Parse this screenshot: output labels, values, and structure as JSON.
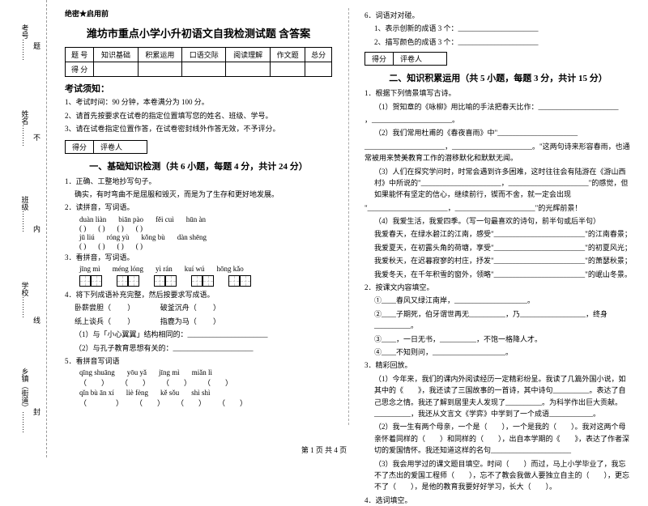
{
  "side": {
    "labels": [
      "乡镇（街道）",
      "学校",
      "班级",
      "姓名",
      "考号"
    ],
    "dots": "………",
    "markers": [
      "封",
      "线",
      "内",
      "不",
      "题"
    ]
  },
  "secret": "绝密★启用前",
  "title": "潍坊市重点小学小升初语文自我检测试题 含答案",
  "score_header": [
    "题  号",
    "知识基础",
    "积累运用",
    "口语交际",
    "阅读理解",
    "作文题",
    "总分"
  ],
  "score_row": "得  分",
  "notice_title": "考试须知：",
  "notices": [
    "1、考试时间：90 分钟，本卷满分为 100 分。",
    "2、请首先按要求在试卷的指定位置填写您的姓名、班级、学号。",
    "3、请在试卷指定位置作答，在试卷密封线外作答无效，不予评分。"
  ],
  "mini_score": {
    "a": "得分",
    "b": "评卷人"
  },
  "section1": "一、基础知识检测（共 6 小题，每题 4 分，共计 24 分）",
  "q1": {
    "stem": "1．正确、工整地抄写句子。",
    "content": "确实，有时弯曲不是屈服和毁灭，而是为了生存和更好地发展。"
  },
  "q2": {
    "stem": "2．读拼音，写词语。",
    "r1": [
      "duàn  liàn",
      "biān pào",
      "fěi cuì",
      "hūn àn"
    ],
    "r2": [
      "(         )",
      "(         )",
      "(         )",
      "(         )"
    ],
    "r3": [
      "jū liú",
      "róng yù",
      "kǒng bù",
      "dàn shēng"
    ],
    "r4": [
      "(         )",
      "(         )",
      "(         )",
      "(         )"
    ]
  },
  "q3": {
    "stem": "3．看拼音，写词语。",
    "pinyin": [
      "jīng  mì",
      "méng  lóng",
      "yì  rán",
      "kuí  wú",
      "hōng  kǎo"
    ]
  },
  "q4": {
    "stem": "4．将下列成语补充完整，然后按要求写成语。",
    "lines": [
      "卧薪尝胆（　 　）　　　　破釜沉舟（　 　）",
      "纸上谈兵（　 　）　　　　指鹿为马（　 　）"
    ],
    "subs": [
      "（1）与「小心翼翼」结构相同的：______________________",
      "（2）与孔子教育思想有关的：______________________"
    ]
  },
  "q5": {
    "stem": "5．看拼音写词语",
    "r1": [
      "qīng shuāng",
      "yōu yǎ",
      "jīng mì",
      "miǎn lì"
    ],
    "r2": [
      "（　　）",
      "（　　）",
      "（　　）",
      "（　　）"
    ],
    "r3": [
      "qǐn bù ān xí",
      "liè fèng",
      "kě sǒu",
      "shì shì"
    ],
    "r4": [
      "（　　　　）",
      "（　　）",
      "（　　）",
      "（　　）"
    ]
  },
  "right": {
    "q6": {
      "stem": "6．词语对对碰。",
      "lines": [
        "1、表示创新的成语 3 个：______________________",
        "2、描写颜色的成语 3 个：______________________"
      ]
    },
    "section2": "二、知识积累运用（共 5 小题，每题 3 分，共计 15 分）",
    "q1": {
      "stem": "1．根据下列情景填写古诗。",
      "lines": [
        "（1）贺知章的《咏柳》用比喻的手法把春天比作：______________________",
        "，______________________。",
        "（2）我们常用杜甫的《春夜喜雨》中\"______________________",
        "______________________，______________________。\"这两句诗来形容春雨，也通常被用来赞美教育工作的潜移默化和默默无闻。",
        "（3）人们在探究学问时，时常会遇到许多困难，这时往往会有陆游在《游山西村》中所说的\"______________________，______________________\"的感觉，但如果能怀有坚定的信心，继续前行，锲而不舍，就一定会出现",
        "\"______________________，______________________\"的光辉前景！",
        "（4）我爱生活，我爱四季。（写一句最喜欢的诗句，前半句或后半句）",
        "我爱春天，在绿水碧江的江南，感受\"_________________________\"的江南春景；",
        "我爱夏天，在初露头角的荷塘，享受\"_________________________\"的初夏风光；",
        "我爱秋天，在迟暮寂寥的村庄，抒发\"_________________________\"的萧瑟秋景；",
        "我爱冬天，在千年积雪的窗外，领略\"_________________________\"的岷山冬景。"
      ]
    },
    "q2": {
      "stem": "2．按课文内容填空。",
      "lines": [
        "①____春风又绿江南岸，____________________。",
        "②____子期死，伯牙谓世再无__________，乃__________________，终身__________。",
        "③____，一日无书，__________，不饱一格降人才。",
        "④____不知则问，____________________。"
      ]
    },
    "q3": {
      "stem": "3．精彩回放。",
      "lines": [
        "（1）今年来，我们的课内外阅读经历一定精彩纷呈。我读了几篇外国小说，如其中的《　　》，我还读了三国故事的一首诗，其中诗句__________。表达了自己思念之情。我还了解到居里夫人发现了__________。为科学作出巨大贡献。__________，我还从文言文《学弈》中学到了一个成语____________。",
        "（2）我一生有两个母亲，一个是（　　），一个是我的（　　）。我对这两个母亲怀着同样的（　　）和同样的（　　），出自本学期的《　　》，表达了作者深切的爱国情怀。我还知道这样的名句______________________",
        "（3）我会用学过的课文题目填空。时间（　　）而过，马上小学毕业了，我忘不了杰出的爱国工程师（　　），忘不了教会我做人要独立自主的（　　），更忘不了（　　），是他的教育我要好好学习，长大（　　）。"
      ]
    },
    "q4": "4．选词填空。"
  },
  "footer": "第 1 页 共 4 页"
}
